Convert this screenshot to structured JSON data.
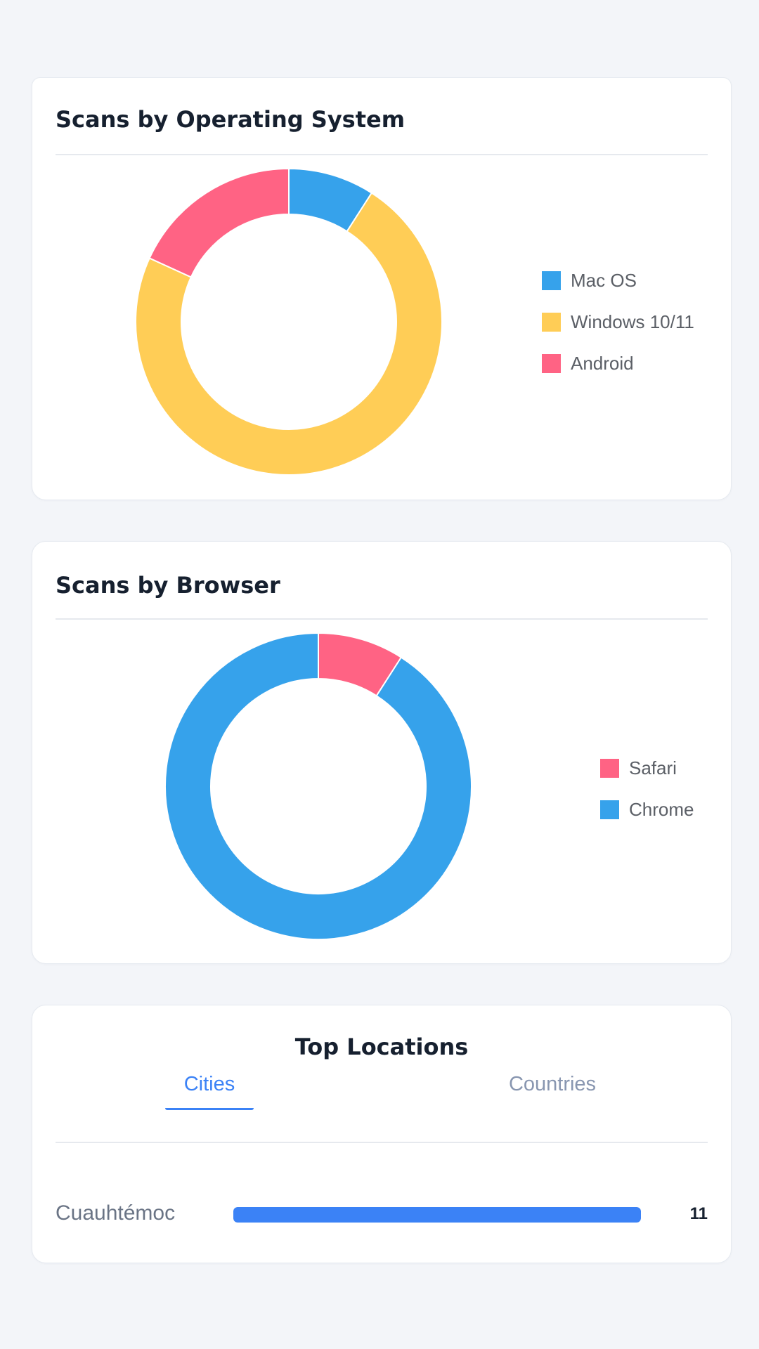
{
  "os_card": {
    "title": "Scans by Operating System",
    "chart_data": {
      "type": "pie",
      "variant": "donut",
      "categories": [
        "Mac OS",
        "Windows 10/11",
        "Android"
      ],
      "values": [
        1,
        8,
        2
      ],
      "colors": [
        "#36a2eb",
        "#ffcd56",
        "#ff6384"
      ],
      "legend": "right"
    }
  },
  "browser_card": {
    "title": "Scans by Browser",
    "chart_data": {
      "type": "pie",
      "variant": "donut",
      "categories": [
        "Safari",
        "Chrome"
      ],
      "values": [
        1,
        10
      ],
      "colors": [
        "#ff6384",
        "#36a2eb"
      ],
      "legend": "right"
    }
  },
  "locations_card": {
    "title": "Top Locations",
    "tabs": [
      {
        "label": "Cities",
        "active": true
      },
      {
        "label": "Countries",
        "active": false
      }
    ],
    "rows": [
      {
        "name": "Cuauhtémoc",
        "count": "11",
        "fill_fraction": 1.0
      }
    ],
    "accent_color": "#3b82f6"
  }
}
